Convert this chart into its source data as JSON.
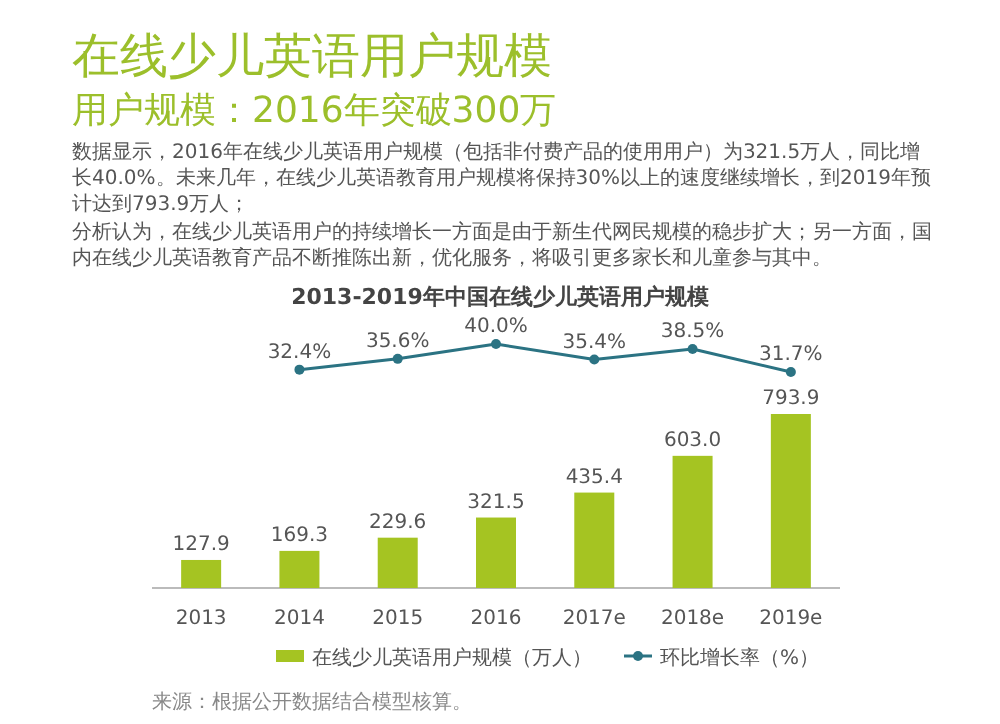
{
  "chart_data": [
    {
      "type": "bar",
      "annotations": [
        "在线少儿英语用户规模",
        "用户规模：2016年突破300万",
        "数据显示，2016年在线少儿英语用户规模（包括非付费产品的使用用户）为321.5万人，同比增长40.0%。未来几年，在线少儿英语教育用户规模将保持30%以上的速度继续增长，到2019年预计达到793.9万人；",
        "分析认为，在线少儿英语用户的持续增长一方面是由于新生代网民规模的稳步扩大；另一方面，国内在线少儿英语教育产品不断推陈出新，优化服务，将吸引更多家长和儿童参与其中。",
        "2013-2019年中国在线少儿英语用户规模",
        "来源：根据公开数据结合模型核算。"
      ],
      "categories": [
        "2013",
        "2014",
        "2015",
        "2016",
        "2017e",
        "2018e",
        "2019e"
      ],
      "series": [
        {
          "name": "在线少儿英语用户规模（万人）",
          "color": "#a5c422",
          "values": [
            127.9,
            169.3,
            229.6,
            321.5,
            435.4,
            603.0,
            793.9
          ],
          "value_labels": [
            "127.9",
            "169.3",
            "229.6",
            "321.5",
            "435.4",
            "603.0",
            "793.9"
          ]
        }
      ],
      "legend": "bottom",
      "tick_labels": "x"
    },
    {
      "type": "line",
      "categories": [
        null,
        null,
        null,
        null,
        null,
        null,
        null
      ],
      "series": [
        {
          "name": "环比增长率（%）",
          "color": "#2b7383",
          "values": [
            null,
            32.4,
            35.6,
            40.0,
            35.4,
            38.5,
            31.7
          ],
          "value_labels": [
            null,
            "32.4%",
            "35.6%",
            "40.0%",
            "35.4%",
            "38.5%",
            "31.7%"
          ]
        }
      ],
      "legend": "bottom",
      "marker": "circle",
      "tick_labels": false
    }
  ]
}
